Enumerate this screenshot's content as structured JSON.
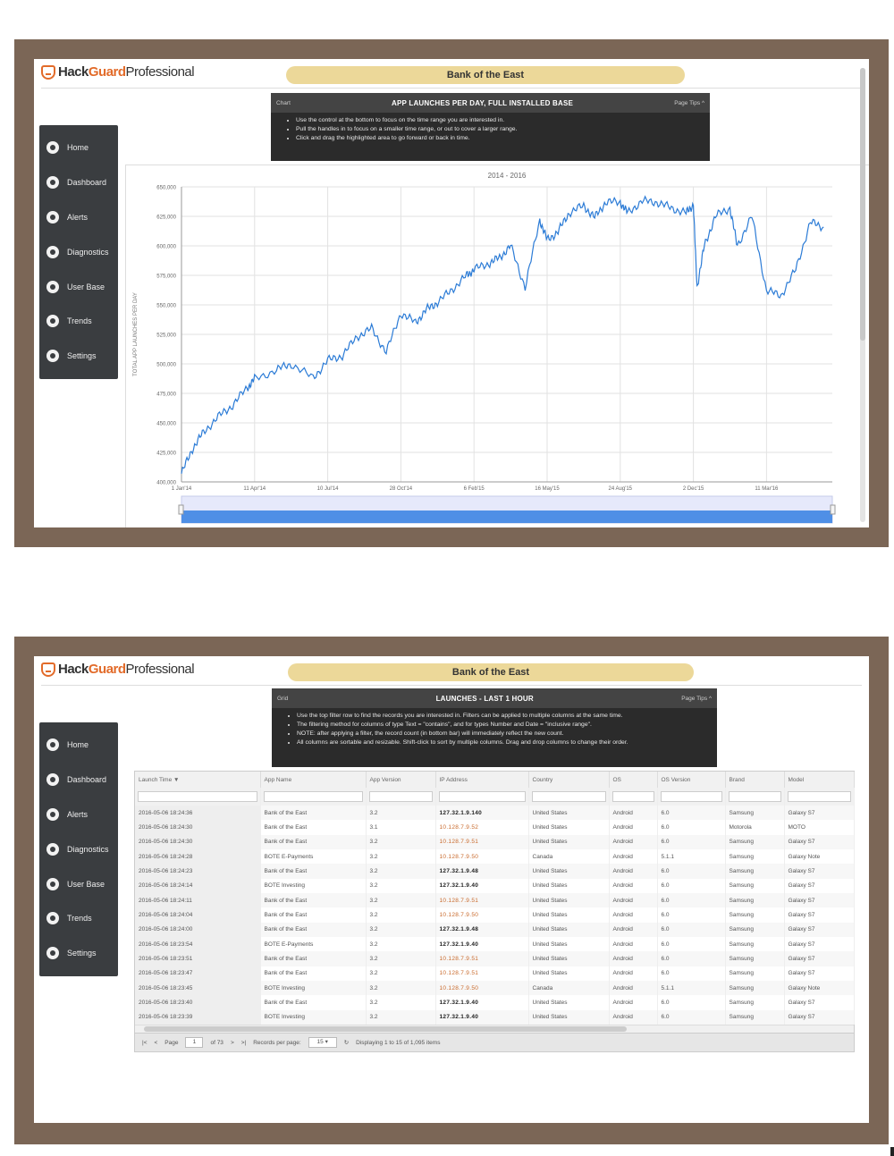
{
  "brand": {
    "hack": "Hack",
    "guard": "Guard",
    "pro": "Professional"
  },
  "org_name": "Bank of the East",
  "sidebar": {
    "items": [
      {
        "label": "Home",
        "icon": "home-icon"
      },
      {
        "label": "Dashboard",
        "icon": "dashboard-icon"
      },
      {
        "label": "Alerts",
        "icon": "alerts-icon"
      },
      {
        "label": "Diagnostics",
        "icon": "diagnostics-icon"
      },
      {
        "label": "User Base",
        "icon": "user-base-icon"
      },
      {
        "label": "Trends",
        "icon": "trends-icon"
      },
      {
        "label": "Settings",
        "icon": "settings-icon"
      }
    ]
  },
  "chart_panel": {
    "tag": "Chart",
    "title": "APP LAUNCHES PER DAY, FULL INSTALLED BASE",
    "page_tips": "Page Tips",
    "tips": [
      "Use the control at the bottom to focus on the time range you are interested in.",
      "Pull the handles in to focus on a smaller time range, or out to cover a larger range.",
      "Click and drag the highlighted area to go forward or back in time."
    ]
  },
  "chart_data": {
    "type": "line",
    "title": "2014 - 2016",
    "ylabel": "TOTAL APP LAUNCHES PER DAY",
    "xlabel": "",
    "ylim": [
      400000,
      650000
    ],
    "y_ticks": [
      "400,000",
      "425,000",
      "450,000",
      "475,000",
      "500,000",
      "525,000",
      "550,000",
      "575,000",
      "600,000",
      "625,000",
      "650,000"
    ],
    "x_ticks": [
      "1 Jan'14",
      "11 Apr'14",
      "10 Jul'14",
      "28 Oct'14",
      "6 Feb'15",
      "16 May'15",
      "24 Aug'15",
      "2 Dec'15",
      "11 Mar'16"
    ],
    "grid": true,
    "legend": "none",
    "color": "#2b7bd6",
    "series": [
      {
        "x_index": [
          0,
          0.15,
          0.3,
          0.5,
          0.7,
          0.9,
          1.0,
          1.3,
          1.5,
          1.8,
          2.0,
          2.2,
          2.4,
          2.6,
          2.8,
          3.0,
          3.2,
          3.35,
          3.5,
          3.7,
          3.9,
          4.0,
          4.2,
          4.35,
          4.5,
          4.7,
          4.9,
          5.0,
          5.15,
          5.3,
          5.5,
          5.65,
          5.8,
          6.0,
          6.1,
          6.3,
          6.5,
          6.7,
          6.9,
          7.0,
          7.05,
          7.15,
          7.3,
          7.5,
          7.6,
          7.8,
          8.0,
          8.2,
          8.4,
          8.6,
          8.78
        ],
        "values": [
          407000,
          428000,
          442000,
          455000,
          465000,
          480000,
          487000,
          495000,
          500000,
          488000,
          503000,
          507000,
          523000,
          530000,
          510000,
          543000,
          535000,
          546000,
          552000,
          563000,
          575000,
          580000,
          585000,
          590000,
          600000,
          565000,
          622000,
          605000,
          612000,
          628000,
          634000,
          624000,
          637000,
          637000,
          628000,
          638000,
          637000,
          632000,
          628000,
          635000,
          565000,
          600000,
          625000,
          632000,
          600000,
          625000,
          562000,
          558000,
          580000,
          620000,
          616000
        ]
      }
    ]
  },
  "grid_panel": {
    "tag": "Grid",
    "title": "LAUNCHES - LAST 1 HOUR",
    "page_tips": "Page Tips",
    "tips": [
      "Use the top filter row to find the records you are interested in. Filters can be applied to multiple columns at the same time.",
      "The filtering method for columns of type Text = \"contains\", and for types Number and Date = \"inclusive range\".",
      "NOTE: after applying a filter, the record count (in bottom bar) will immediately reflect the new count.",
      "All columns are sortable and resizable. Shift-click to sort by multiple columns. Drag and drop columns to change their order."
    ]
  },
  "grid": {
    "columns": [
      "Launch Time ▼",
      "App Name",
      "App Version",
      "IP Address",
      "Country",
      "OS",
      "OS Version",
      "Brand",
      "Model"
    ],
    "rows": [
      [
        "2016-05-06 18:24:36",
        "Bank of the East",
        "3.2",
        "127.32.1.9.140",
        "United States",
        "Android",
        "6.0",
        "Samsung",
        "Galaxy S7"
      ],
      [
        "2016-05-06 18:24:30",
        "Bank of the East",
        "3.1",
        "10.128.7.9.52",
        "United States",
        "Android",
        "6.0",
        "Motorola",
        "MOTO"
      ],
      [
        "2016-05-06 18:24:30",
        "Bank of the East",
        "3.2",
        "10.128.7.9.51",
        "United States",
        "Android",
        "6.0",
        "Samsung",
        "Galaxy S7"
      ],
      [
        "2016-05-06 18:24:28",
        "BOTE E-Payments",
        "3.2",
        "10.128.7.9.50",
        "Canada",
        "Android",
        "5.1.1",
        "Samsung",
        "Galaxy Note"
      ],
      [
        "2016-05-06 18:24:23",
        "Bank of the East",
        "3.2",
        "127.32.1.9.48",
        "United States",
        "Android",
        "6.0",
        "Samsung",
        "Galaxy S7"
      ],
      [
        "2016-05-06 18:24:14",
        "BOTE Investing",
        "3.2",
        "127.32.1.9.40",
        "United States",
        "Android",
        "6.0",
        "Samsung",
        "Galaxy S7"
      ],
      [
        "2016-05-06 18:24:11",
        "Bank of the East",
        "3.2",
        "10.128.7.9.51",
        "United States",
        "Android",
        "6.0",
        "Samsung",
        "Galaxy S7"
      ],
      [
        "2016-05-06 18:24:04",
        "Bank of the East",
        "3.2",
        "10.128.7.9.50",
        "United States",
        "Android",
        "6.0",
        "Samsung",
        "Galaxy S7"
      ],
      [
        "2016-05-06 18:24:00",
        "Bank of the East",
        "3.2",
        "127.32.1.9.48",
        "United States",
        "Android",
        "6.0",
        "Samsung",
        "Galaxy S7"
      ],
      [
        "2016-05-06 18:23:54",
        "BOTE E-Payments",
        "3.2",
        "127.32.1.9.40",
        "United States",
        "Android",
        "6.0",
        "Samsung",
        "Galaxy S7"
      ],
      [
        "2016-05-06 18:23:51",
        "Bank of the East",
        "3.2",
        "10.128.7.9.51",
        "United States",
        "Android",
        "6.0",
        "Samsung",
        "Galaxy S7"
      ],
      [
        "2016-05-06 18:23:47",
        "Bank of the East",
        "3.2",
        "10.128.7.9.51",
        "United States",
        "Android",
        "6.0",
        "Samsung",
        "Galaxy S7"
      ],
      [
        "2016-05-06 18:23:45",
        "BOTE Investing",
        "3.2",
        "10.128.7.9.50",
        "Canada",
        "Android",
        "5.1.1",
        "Samsung",
        "Galaxy Note"
      ],
      [
        "2016-05-06 18:23:40",
        "Bank of the East",
        "3.2",
        "127.32.1.9.40",
        "United States",
        "Android",
        "6.0",
        "Samsung",
        "Galaxy S7"
      ],
      [
        "2016-05-06 18:23:39",
        "BOTE Investing",
        "3.2",
        "127.32.1.9.40",
        "United States",
        "Android",
        "6.0",
        "Samsung",
        "Galaxy S7"
      ]
    ],
    "warn_ip_rows": [
      1,
      2,
      3,
      6,
      7,
      10,
      11,
      12
    ],
    "pager": {
      "page_label": "Page",
      "page_value": "1",
      "of_label": "of 73",
      "records_label": "Records per page:",
      "records_value": "15",
      "display_text": "Displaying 1 to 15 of 1,095 items"
    }
  },
  "colors": {
    "frame": "#7b6656",
    "accent": "#e26b2a",
    "pill": "#ecd899",
    "line": "#2b7bd6"
  }
}
